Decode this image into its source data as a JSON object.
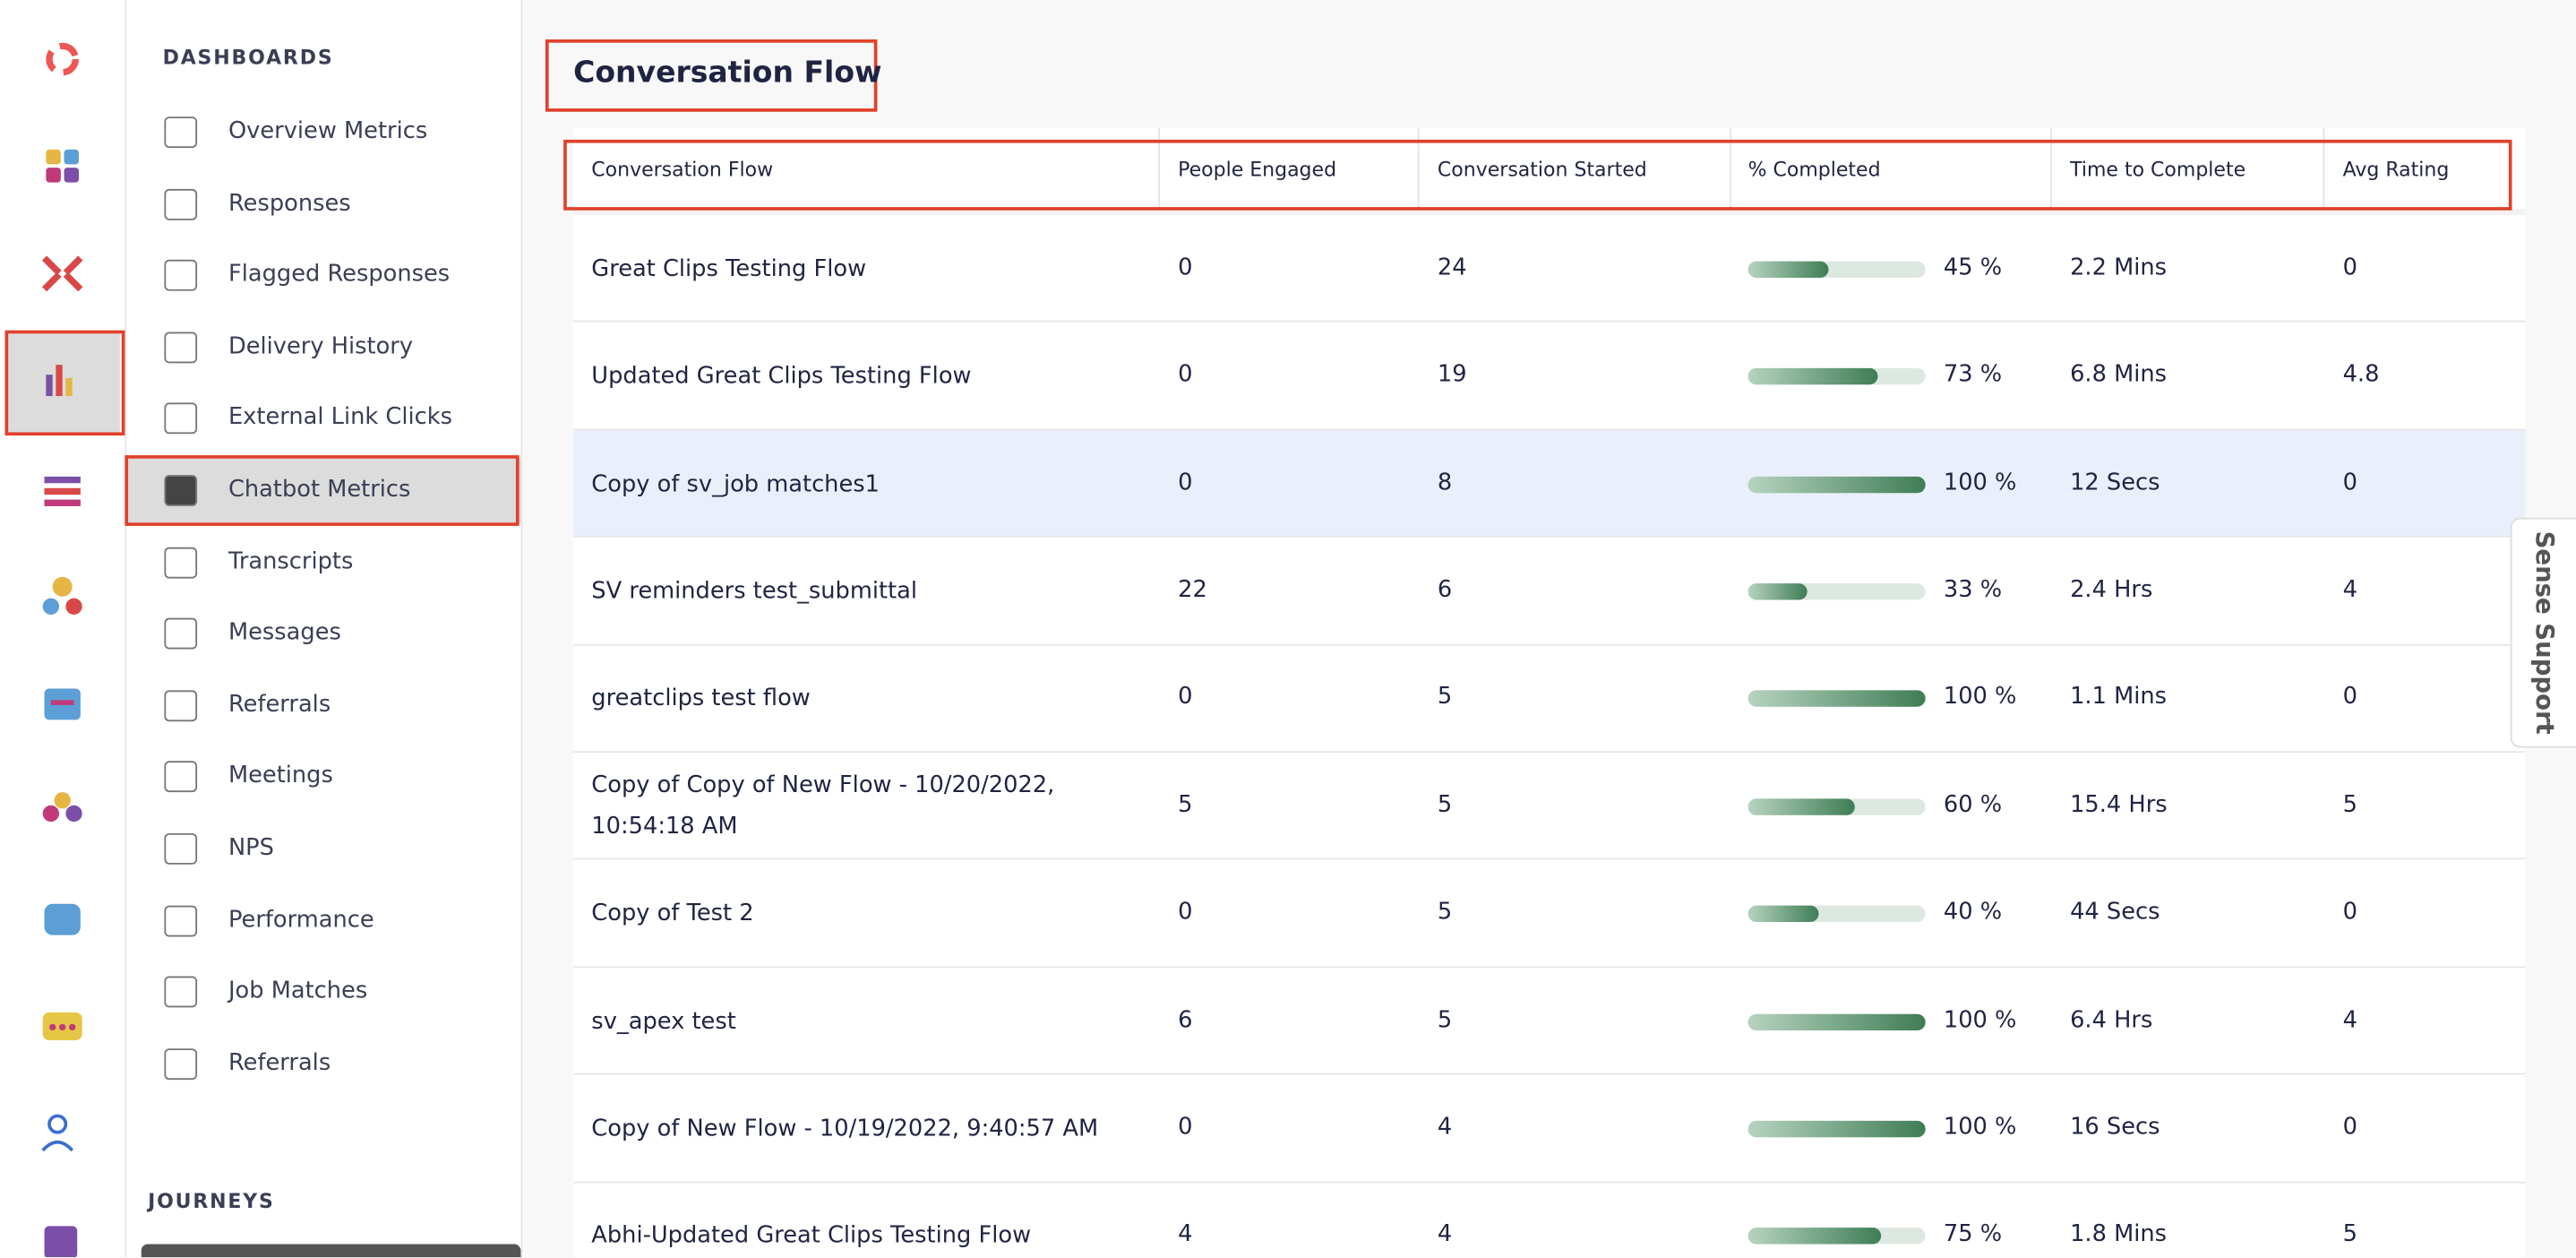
{
  "sidebar": {
    "section": "DASHBOARDS",
    "items": [
      "Overview Metrics",
      "Responses",
      "Flagged Responses",
      "Delivery History",
      "External Link Clicks",
      "Chatbot Metrics",
      "Transcripts",
      "Messages",
      "Referrals",
      "Meetings",
      "NPS",
      "Performance",
      "Job Matches",
      "Referrals"
    ],
    "section2": "JOURNEYS"
  },
  "header": {
    "title": "Conversation Flow"
  },
  "table": {
    "columns": [
      "Conversation Flow",
      "People Engaged",
      "Conversation Started",
      "% Completed",
      "Time to Complete",
      "Avg Rating"
    ],
    "rows": [
      [
        "Great Clips Testing Flow",
        0,
        24,
        {
          "value": 45,
          "label": "45 %"
        },
        "2.2 Mins",
        0
      ],
      [
        "Updated Great Clips Testing Flow",
        0,
        19,
        {
          "value": 73,
          "label": "73 %"
        },
        "6.8 Mins",
        4.8
      ],
      [
        "Copy of sv_job matches1",
        0,
        8,
        {
          "value": 100,
          "label": "100 %"
        },
        "12 Secs",
        0
      ],
      [
        "SV reminders test_submittal",
        22,
        6,
        {
          "value": 33,
          "label": "33 %"
        },
        "2.4 Hrs",
        4
      ],
      [
        "greatclips test flow",
        0,
        5,
        {
          "value": 100,
          "label": "100 %"
        },
        "1.1 Mins",
        0
      ],
      [
        "Copy of Copy of New Flow - 10/20/2022, 10:54:18 AM",
        5,
        5,
        {
          "value": 60,
          "label": "60 %"
        },
        "15.4 Hrs",
        5
      ],
      [
        "Copy of Test 2",
        0,
        5,
        {
          "value": 40,
          "label": "40 %"
        },
        "44 Secs",
        0
      ],
      [
        "sv_apex test",
        6,
        5,
        {
          "value": 100,
          "label": "100 %"
        },
        "6.4 Hrs",
        4
      ],
      [
        "Copy of New Flow - 10/19/2022, 9:40:57 AM",
        0,
        4,
        {
          "value": 100,
          "label": "100 %"
        },
        "16 Secs",
        0
      ],
      [
        "Abhi-Updated Great Clips Testing Flow",
        4,
        4,
        {
          "value": 75,
          "label": "75 %"
        },
        "1.8 Mins",
        5
      ]
    ]
  },
  "support": "Sense Support"
}
